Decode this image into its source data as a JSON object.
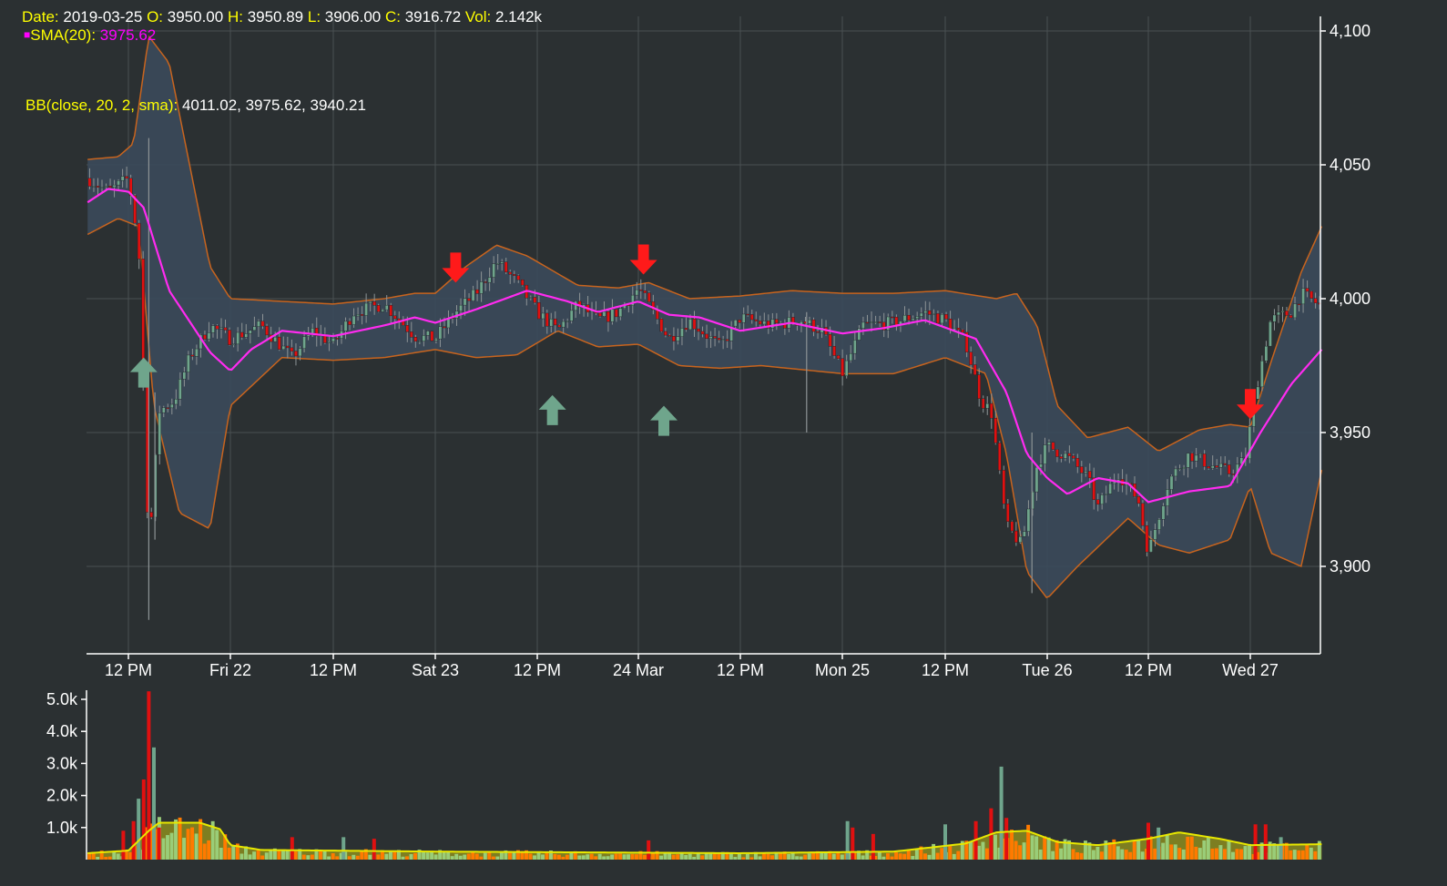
{
  "colors": {
    "background": "#2b3032",
    "grid": "#4a5052",
    "axis": "#ffffff",
    "candle_up": "#6fa58c",
    "candle_down": "#e01010",
    "wick": "#8e9496",
    "sma": "#ff2bf0",
    "bb_band": "#c8641e",
    "bb_fill": "#3b4a5a",
    "arrow_buy": "#6fa58c",
    "arrow_sell": "#ff1a1a",
    "vol_up": "#9acd78",
    "vol_down": "#ff7a00",
    "vol_spike_down": "#e01010",
    "vol_spike_up": "#6fa58c",
    "vol_sma": "#e8e800",
    "vol_sma_fill": "#8c8c1e",
    "legend_label": "#ffff00",
    "legend_value": "#ffffff"
  },
  "legend": {
    "ohlc": [
      {
        "label": "Date:",
        "value": "2019-03-25"
      },
      {
        "label": "O:",
        "value": "3950.00"
      },
      {
        "label": "H:",
        "value": "3950.89"
      },
      {
        "label": "L:",
        "value": "3906.00"
      },
      {
        "label": "C:",
        "value": "3916.72"
      },
      {
        "label": "Vol:",
        "value": "2.142k"
      }
    ],
    "sma": {
      "marker": "■",
      "label": "SMA(20):",
      "value": "3975.62"
    },
    "bb": {
      "label": "BB(close, 20, 2, sma):",
      "value": "4011.02, 3975.62, 3940.21"
    }
  },
  "chart_data": [
    {
      "type": "candlestick",
      "price_axis": {
        "ylim": [
          3868,
          4112
        ],
        "ticks": [
          3900,
          3950,
          4000,
          4050,
          4100
        ],
        "tick_labels": [
          "3,900",
          "3,950",
          "4,000",
          "4,050",
          "4,100"
        ],
        "side": "right"
      },
      "time_axis": {
        "tick_labels": [
          "12 PM",
          "Fri 22",
          "12 PM",
          "Sat 23",
          "12 PM",
          "24 Mar",
          "12 PM",
          "Mon 25",
          "12 PM",
          "Tue 26",
          "12 PM",
          "Wed 27"
        ],
        "tick_index": [
          0,
          1,
          2,
          3,
          4,
          5,
          6,
          7,
          8,
          9,
          10,
          11
        ],
        "start": -0.4,
        "end": 11.7
      },
      "grid": true,
      "sma_anchors": [
        [
          -0.4,
          4036
        ],
        [
          -0.2,
          4041
        ],
        [
          0.0,
          4040
        ],
        [
          0.15,
          4034
        ],
        [
          0.4,
          4003
        ],
        [
          0.8,
          3980
        ],
        [
          1.0,
          3973
        ],
        [
          1.2,
          3981
        ],
        [
          1.5,
          3988
        ],
        [
          2.0,
          3986
        ],
        [
          2.5,
          3990
        ],
        [
          2.8,
          3993
        ],
        [
          3.0,
          3991
        ],
        [
          3.4,
          3996
        ],
        [
          3.9,
          4003
        ],
        [
          4.3,
          3999
        ],
        [
          4.6,
          3995
        ],
        [
          5.0,
          3999
        ],
        [
          5.3,
          3994
        ],
        [
          5.6,
          3993
        ],
        [
          6.0,
          3988
        ],
        [
          6.5,
          3991
        ],
        [
          7.0,
          3987
        ],
        [
          7.4,
          3989
        ],
        [
          7.8,
          3992
        ],
        [
          8.3,
          3985
        ],
        [
          8.6,
          3965
        ],
        [
          8.8,
          3942
        ],
        [
          9.0,
          3933
        ],
        [
          9.2,
          3927
        ],
        [
          9.5,
          3933
        ],
        [
          9.8,
          3931
        ],
        [
          10.0,
          3924
        ],
        [
          10.4,
          3928
        ],
        [
          10.8,
          3930
        ],
        [
          11.1,
          3950
        ],
        [
          11.4,
          3968
        ],
        [
          11.7,
          3981
        ]
      ],
      "bb_upper_anchors": [
        [
          -0.4,
          4052
        ],
        [
          -0.1,
          4053
        ],
        [
          0.05,
          4058
        ],
        [
          0.2,
          4098
        ],
        [
          0.4,
          4088
        ],
        [
          0.6,
          4050
        ],
        [
          0.8,
          4012
        ],
        [
          1.0,
          4000
        ],
        [
          1.5,
          3999
        ],
        [
          2.0,
          3998
        ],
        [
          2.5,
          4000
        ],
        [
          2.8,
          4002
        ],
        [
          3.0,
          4002
        ],
        [
          3.3,
          4012
        ],
        [
          3.6,
          4020
        ],
        [
          3.9,
          4016
        ],
        [
          4.4,
          4005
        ],
        [
          4.8,
          4004
        ],
        [
          5.1,
          4006
        ],
        [
          5.5,
          4000
        ],
        [
          6.0,
          4001
        ],
        [
          6.5,
          4003
        ],
        [
          7.0,
          4002
        ],
        [
          7.5,
          4002
        ],
        [
          8.0,
          4003
        ],
        [
          8.5,
          4000
        ],
        [
          8.7,
          4002
        ],
        [
          8.9,
          3990
        ],
        [
          9.1,
          3960
        ],
        [
          9.4,
          3948
        ],
        [
          9.8,
          3952
        ],
        [
          10.1,
          3943
        ],
        [
          10.5,
          3951
        ],
        [
          10.8,
          3953
        ],
        [
          11.0,
          3952
        ],
        [
          11.2,
          3976
        ],
        [
          11.5,
          4010
        ],
        [
          11.7,
          4027
        ]
      ],
      "bb_lower_anchors": [
        [
          -0.4,
          4024
        ],
        [
          -0.1,
          4030
        ],
        [
          0.1,
          4027
        ],
        [
          0.25,
          3960
        ],
        [
          0.5,
          3920
        ],
        [
          0.8,
          3914
        ],
        [
          1.0,
          3960
        ],
        [
          1.5,
          3978
        ],
        [
          2.0,
          3977
        ],
        [
          2.5,
          3978
        ],
        [
          3.0,
          3981
        ],
        [
          3.4,
          3978
        ],
        [
          3.8,
          3979
        ],
        [
          4.2,
          3988
        ],
        [
          4.6,
          3982
        ],
        [
          5.0,
          3983
        ],
        [
          5.4,
          3975
        ],
        [
          5.8,
          3974
        ],
        [
          6.2,
          3975
        ],
        [
          7.0,
          3972
        ],
        [
          7.5,
          3972
        ],
        [
          8.0,
          3978
        ],
        [
          8.4,
          3972
        ],
        [
          8.6,
          3942
        ],
        [
          8.8,
          3898
        ],
        [
          9.0,
          3888
        ],
        [
          9.3,
          3900
        ],
        [
          9.8,
          3918
        ],
        [
          10.1,
          3908
        ],
        [
          10.4,
          3905
        ],
        [
          10.8,
          3910
        ],
        [
          11.0,
          3930
        ],
        [
          11.2,
          3905
        ],
        [
          11.5,
          3900
        ],
        [
          11.7,
          3936
        ]
      ],
      "price_anchors": [
        [
          -0.4,
          4045
        ],
        [
          -0.2,
          4040
        ],
        [
          0.0,
          4045
        ],
        [
          0.1,
          4020
        ],
        [
          0.2,
          3905
        ],
        [
          0.3,
          3958
        ],
        [
          0.45,
          3962
        ],
        [
          0.6,
          3978
        ],
        [
          0.8,
          3990
        ],
        [
          1.0,
          3985
        ],
        [
          1.3,
          3990
        ],
        [
          1.6,
          3978
        ],
        [
          1.8,
          3988
        ],
        [
          2.0,
          3983
        ],
        [
          2.2,
          3995
        ],
        [
          2.5,
          3998
        ],
        [
          2.8,
          3986
        ],
        [
          3.0,
          3985
        ],
        [
          3.2,
          3995
        ],
        [
          3.4,
          4002
        ],
        [
          3.6,
          4014
        ],
        [
          3.8,
          4006
        ],
        [
          4.0,
          3995
        ],
        [
          4.2,
          3988
        ],
        [
          4.4,
          3998
        ],
        [
          4.6,
          3992
        ],
        [
          4.8,
          3995
        ],
        [
          5.0,
          4004
        ],
        [
          5.3,
          3985
        ],
        [
          5.5,
          3992
        ],
        [
          5.8,
          3982
        ],
        [
          6.0,
          3993
        ],
        [
          6.3,
          3990
        ],
        [
          6.6,
          3992
        ],
        [
          6.8,
          3988
        ],
        [
          7.0,
          3972
        ],
        [
          7.2,
          3990
        ],
        [
          7.5,
          3991
        ],
        [
          7.8,
          3995
        ],
        [
          8.0,
          3992
        ],
        [
          8.2,
          3984
        ],
        [
          8.35,
          3962
        ],
        [
          8.45,
          3958
        ],
        [
          8.6,
          3915
        ],
        [
          8.75,
          3908
        ],
        [
          8.9,
          3938
        ],
        [
          9.0,
          3945
        ],
        [
          9.2,
          3941
        ],
        [
          9.4,
          3933
        ],
        [
          9.5,
          3922
        ],
        [
          9.7,
          3935
        ],
        [
          9.9,
          3925
        ],
        [
          10.0,
          3905
        ],
        [
          10.2,
          3932
        ],
        [
          10.4,
          3942
        ],
        [
          10.6,
          3938
        ],
        [
          10.8,
          3935
        ],
        [
          10.95,
          3940
        ],
        [
          11.05,
          3965
        ],
        [
          11.2,
          3992
        ],
        [
          11.4,
          3995
        ],
        [
          11.5,
          4002
        ],
        [
          11.7,
          3997
        ]
      ],
      "volume_axis": {
        "ylim": [
          0,
          5300
        ],
        "ticks": [
          1000,
          2000,
          3000,
          4000,
          5000
        ],
        "tick_labels": [
          "1.0k",
          "2.0k",
          "3.0k",
          "4.0k",
          "5.0k"
        ],
        "side": "left"
      },
      "volume_spikes": [
        [
          -0.05,
          900
        ],
        [
          0.05,
          1200
        ],
        [
          0.1,
          1900
        ],
        [
          0.15,
          2500
        ],
        [
          0.2,
          5250
        ],
        [
          0.25,
          3500
        ],
        [
          0.3,
          1000
        ],
        [
          1.6,
          700
        ],
        [
          2.1,
          700
        ],
        [
          2.4,
          650
        ],
        [
          5.1,
          600
        ],
        [
          7.05,
          1200
        ],
        [
          7.1,
          1000
        ],
        [
          7.3,
          800
        ],
        [
          8.0,
          1100
        ],
        [
          8.3,
          1200
        ],
        [
          8.45,
          1600
        ],
        [
          8.55,
          2900
        ],
        [
          8.6,
          1300
        ],
        [
          10.0,
          1150
        ],
        [
          10.1,
          1000
        ],
        [
          11.05,
          1100
        ],
        [
          11.15,
          1100
        ],
        [
          11.3,
          700
        ]
      ],
      "volume_sma_anchors": [
        [
          -0.4,
          200
        ],
        [
          0.0,
          280
        ],
        [
          0.2,
          900
        ],
        [
          0.3,
          1150
        ],
        [
          0.7,
          1150
        ],
        [
          0.9,
          950
        ],
        [
          1.0,
          450
        ],
        [
          1.3,
          300
        ],
        [
          3.0,
          250
        ],
        [
          6.0,
          200
        ],
        [
          7.5,
          250
        ],
        [
          8.2,
          500
        ],
        [
          8.5,
          850
        ],
        [
          8.8,
          900
        ],
        [
          9.1,
          550
        ],
        [
          9.5,
          450
        ],
        [
          10.0,
          650
        ],
        [
          10.3,
          850
        ],
        [
          10.7,
          650
        ],
        [
          11.0,
          450
        ],
        [
          11.7,
          480
        ]
      ],
      "arrows": [
        {
          "type": "buy",
          "x": 0.15,
          "price": 3978
        },
        {
          "type": "sell",
          "x": 3.2,
          "price": 4006
        },
        {
          "type": "buy",
          "x": 4.15,
          "price": 3964
        },
        {
          "type": "sell",
          "x": 5.05,
          "price": 4009
        },
        {
          "type": "buy",
          "x": 5.25,
          "price": 3960
        },
        {
          "type": "sell",
          "x": 11.0,
          "price": 3955
        }
      ]
    }
  ]
}
